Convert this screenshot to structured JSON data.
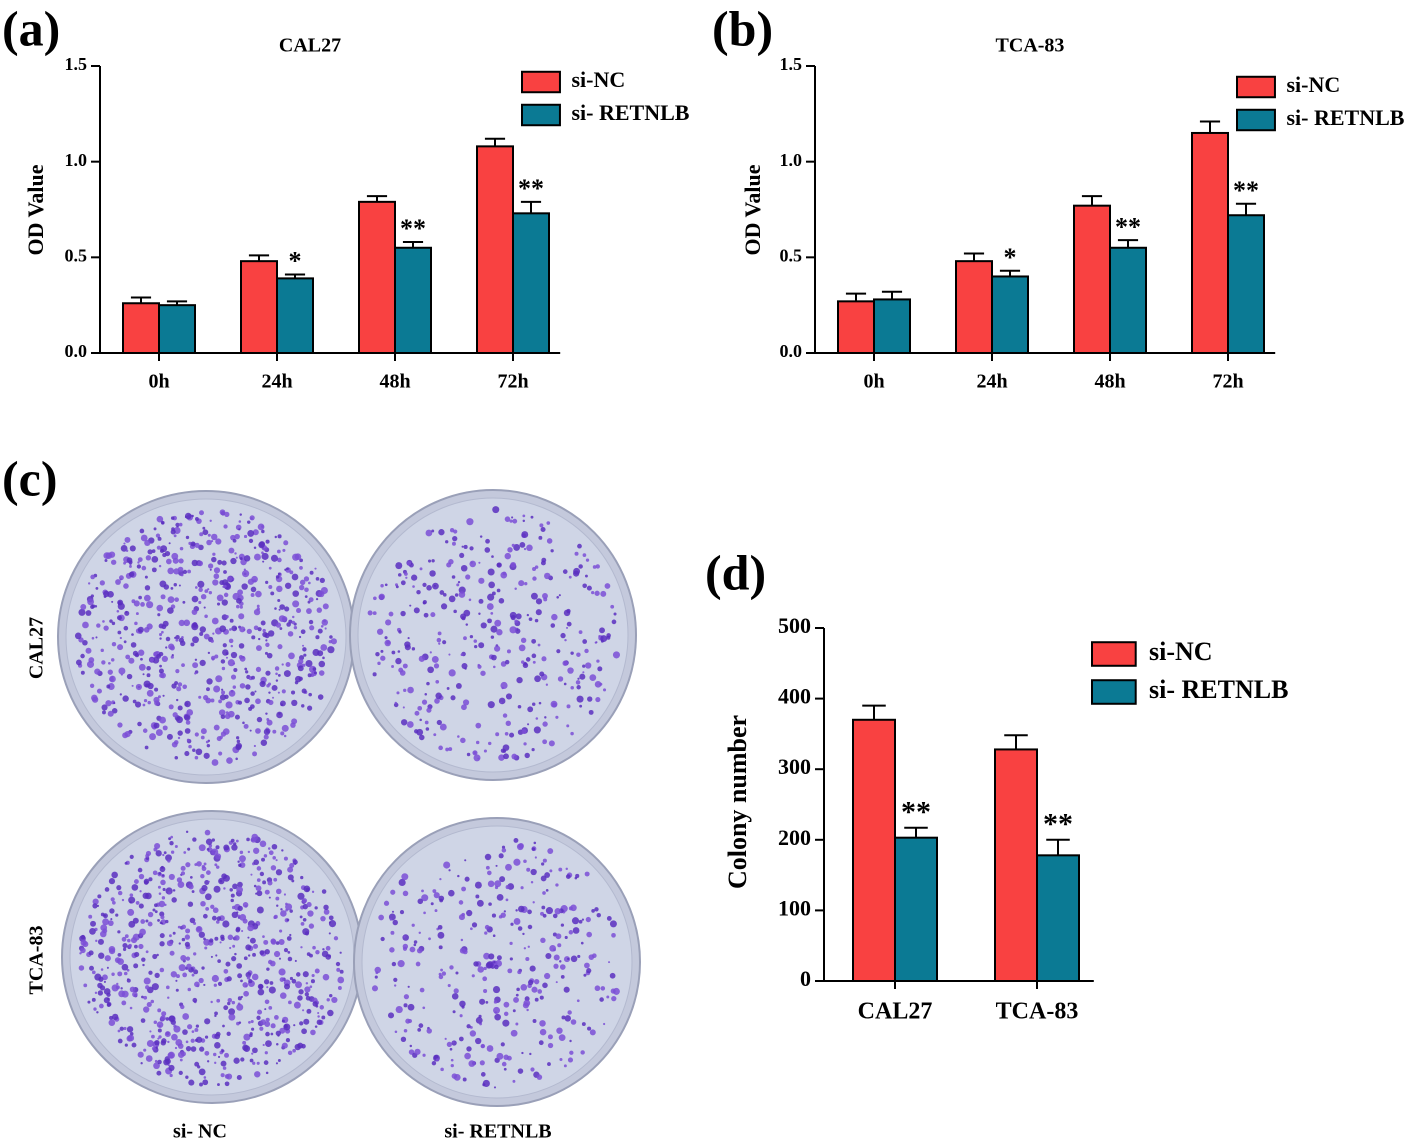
{
  "chart_data": [
    {
      "type": "bar",
      "panel_label": "(a)",
      "title": "CAL27",
      "ylabel": "OD Value",
      "categories": [
        "0h",
        "24h",
        "48h",
        "72h"
      ],
      "series": [
        {
          "name": "si-NC",
          "color": "#f94141",
          "values": [
            0.26,
            0.48,
            0.79,
            1.08
          ],
          "errors": [
            0.03,
            0.03,
            0.03,
            0.04
          ],
          "annotations": [
            null,
            null,
            null,
            null
          ]
        },
        {
          "name": "si- RETNLB",
          "color": "#0b7a94",
          "values": [
            0.25,
            0.39,
            0.55,
            0.73
          ],
          "errors": [
            0.02,
            0.02,
            0.03,
            0.06
          ],
          "annotations": [
            null,
            "*",
            "**",
            "**"
          ]
        }
      ],
      "ylim": [
        0,
        1.5
      ],
      "yticks": [
        {
          "value": 0,
          "label": "0.0"
        },
        {
          "value": 0.5,
          "label": "0.5"
        },
        {
          "value": 1,
          "label": "1.0"
        },
        {
          "value": 1.5,
          "label": "1.5"
        }
      ],
      "legend": "top-right"
    },
    {
      "type": "bar",
      "panel_label": "(b)",
      "title": "TCA-83",
      "ylabel": "OD Value",
      "categories": [
        "0h",
        "24h",
        "48h",
        "72h"
      ],
      "series": [
        {
          "name": "si-NC",
          "color": "#f94141",
          "values": [
            0.27,
            0.48,
            0.77,
            1.15
          ],
          "errors": [
            0.04,
            0.04,
            0.05,
            0.06
          ],
          "annotations": [
            null,
            null,
            null,
            null
          ]
        },
        {
          "name": "si- RETNLB",
          "color": "#0b7a94",
          "values": [
            0.28,
            0.4,
            0.55,
            0.72
          ],
          "errors": [
            0.04,
            0.03,
            0.04,
            0.06
          ],
          "annotations": [
            null,
            "*",
            "**",
            "**"
          ]
        }
      ],
      "ylim": [
        0,
        1.5
      ],
      "yticks": [
        {
          "value": 0,
          "label": "0.0"
        },
        {
          "value": 0.5,
          "label": "0.5"
        },
        {
          "value": 1,
          "label": "1.0"
        },
        {
          "value": 1.5,
          "label": "1.5"
        }
      ],
      "legend": "top-right"
    },
    {
      "type": "bar",
      "panel_label": "(d)",
      "ylabel": "Colony number",
      "categories": [
        "CAL27",
        "TCA-83"
      ],
      "series": [
        {
          "name": "si-NC",
          "color": "#f94141",
          "values": [
            370,
            328
          ],
          "errors": [
            20,
            20
          ],
          "annotations": [
            null,
            null
          ]
        },
        {
          "name": "si- RETNLB",
          "color": "#0b7a94",
          "values": [
            203,
            178
          ],
          "errors": [
            14,
            22
          ],
          "annotations": [
            "**",
            "**"
          ]
        }
      ],
      "ylim": [
        0,
        500
      ],
      "yticks": [
        0,
        100,
        200,
        300,
        400,
        500
      ],
      "legend": "top-right"
    }
  ],
  "panel_c": {
    "panel_label": "(c)",
    "row_labels": [
      "CAL27",
      "TCA-83"
    ],
    "col_labels": [
      "si- NC",
      "si- RETNLB"
    ]
  }
}
